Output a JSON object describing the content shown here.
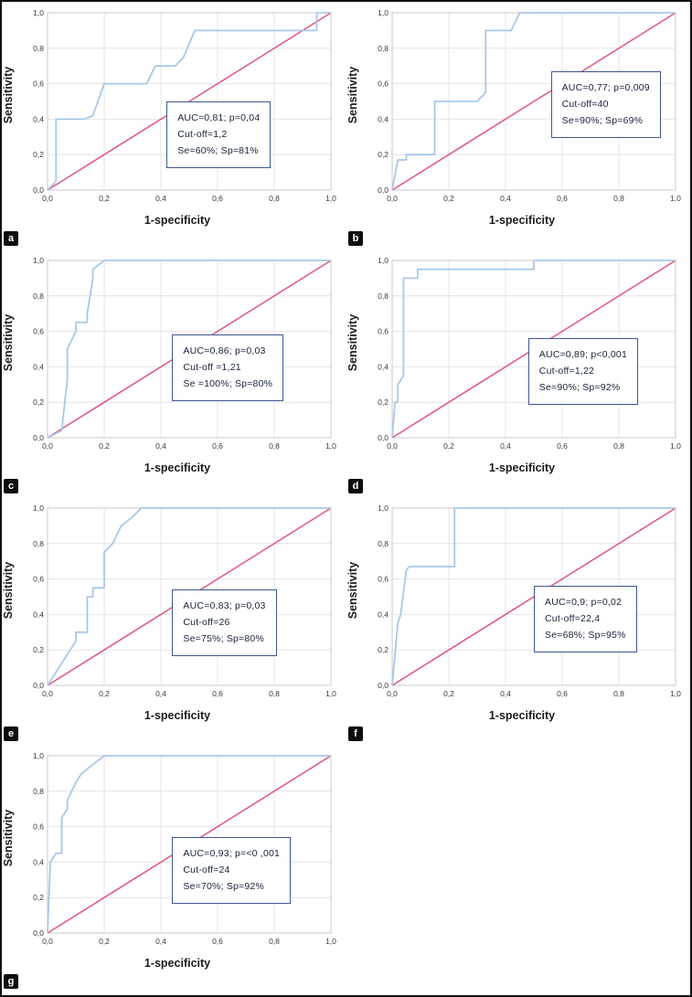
{
  "figure": {
    "ticks": [
      "0,0",
      "0,2",
      "0,4",
      "0,6",
      "0,8",
      "1,0"
    ],
    "xlabel": "1-specificity",
    "ylabel": "Sensitivity"
  },
  "colors": {
    "roc_curve": "#a9c7e8",
    "diagonal_reference": "#e0577a",
    "grid": "#e4e4e4",
    "annotation_border": "#3a5795",
    "letter_badge_bg": "#0d0d0d",
    "letter_badge_text": "#ffffff"
  },
  "chart_data": [
    {
      "type": "line",
      "panel": "a",
      "xlabel": "1-specificity",
      "ylabel": "Sensitivity",
      "xlim": [
        0,
        1
      ],
      "ylim": [
        0,
        1
      ],
      "grid": true,
      "annotation": {
        "auc_p": "AUC=0,81; p=0,04",
        "cutoff": "Cut-off=1,2",
        "se_sp": "Se=60%; Sp=81%"
      },
      "box_pos": [
        0.42,
        0.5
      ],
      "diagonal": [
        [
          0,
          0
        ],
        [
          1,
          1
        ]
      ],
      "roc_points": [
        [
          0,
          0
        ],
        [
          0.03,
          0.05
        ],
        [
          0.03,
          0.4
        ],
        [
          0.13,
          0.4
        ],
        [
          0.16,
          0.42
        ],
        [
          0.2,
          0.6
        ],
        [
          0.35,
          0.6
        ],
        [
          0.38,
          0.7
        ],
        [
          0.45,
          0.7
        ],
        [
          0.48,
          0.75
        ],
        [
          0.52,
          0.9
        ],
        [
          0.95,
          0.9
        ],
        [
          0.95,
          1.0
        ],
        [
          1,
          1
        ]
      ]
    },
    {
      "type": "line",
      "panel": "b",
      "xlabel": "1-specificity",
      "ylabel": "Sensitivity",
      "xlim": [
        0,
        1
      ],
      "ylim": [
        0,
        1
      ],
      "grid": true,
      "annotation": {
        "auc_p": "AUC=0,77; p=0,009",
        "cutoff": "Cut-off=40",
        "se_sp": "Se=90%; Sp=69%"
      },
      "box_pos": [
        0.56,
        0.33
      ],
      "diagonal": [
        [
          0,
          0
        ],
        [
          1,
          1
        ]
      ],
      "roc_points": [
        [
          0,
          0
        ],
        [
          0.02,
          0.17
        ],
        [
          0.05,
          0.17
        ],
        [
          0.05,
          0.2
        ],
        [
          0.15,
          0.2
        ],
        [
          0.15,
          0.5
        ],
        [
          0.3,
          0.5
        ],
        [
          0.33,
          0.55
        ],
        [
          0.33,
          0.9
        ],
        [
          0.42,
          0.9
        ],
        [
          0.45,
          1.0
        ],
        [
          1,
          1
        ]
      ]
    },
    {
      "type": "line",
      "panel": "c",
      "xlabel": "1-specificity",
      "ylabel": "Sensitivity",
      "xlim": [
        0,
        1
      ],
      "ylim": [
        0,
        1
      ],
      "grid": true,
      "annotation": {
        "auc_p": "AUC=0,86; p=0,03",
        "cutoff": "Cut-off =1,21",
        "se_sp": "Se =100%; Sp=80%"
      },
      "box_pos": [
        0.44,
        0.42
      ],
      "diagonal": [
        [
          0,
          0
        ],
        [
          1,
          1
        ]
      ],
      "roc_points": [
        [
          0,
          0
        ],
        [
          0.05,
          0.04
        ],
        [
          0.07,
          0.33
        ],
        [
          0.07,
          0.5
        ],
        [
          0.1,
          0.6
        ],
        [
          0.1,
          0.65
        ],
        [
          0.14,
          0.65
        ],
        [
          0.14,
          0.7
        ],
        [
          0.16,
          0.9
        ],
        [
          0.16,
          0.95
        ],
        [
          0.2,
          1.0
        ],
        [
          1,
          1
        ]
      ]
    },
    {
      "type": "line",
      "panel": "d",
      "xlabel": "1-specificity",
      "ylabel": "Sensitivity",
      "xlim": [
        0,
        1
      ],
      "ylim": [
        0,
        1
      ],
      "grid": true,
      "annotation": {
        "auc_p": "AUC=0,89; p<0,001",
        "cutoff": "Cut-off=1,22",
        "se_sp": "Se=90%; Sp=92%"
      },
      "box_pos": [
        0.48,
        0.44
      ],
      "diagonal": [
        [
          0,
          0
        ],
        [
          1,
          1
        ]
      ],
      "roc_points": [
        [
          0,
          0
        ],
        [
          0.01,
          0.2
        ],
        [
          0.02,
          0.2
        ],
        [
          0.02,
          0.3
        ],
        [
          0.04,
          0.35
        ],
        [
          0.04,
          0.9
        ],
        [
          0.09,
          0.9
        ],
        [
          0.09,
          0.95
        ],
        [
          0.5,
          0.95
        ],
        [
          0.5,
          1.0
        ],
        [
          1,
          1
        ]
      ]
    },
    {
      "type": "line",
      "panel": "e",
      "xlabel": "1-specificity",
      "ylabel": "Sensitivity",
      "xlim": [
        0,
        1
      ],
      "ylim": [
        0,
        1
      ],
      "grid": true,
      "annotation": {
        "auc_p": "AUC=0,83; p=0,03",
        "cutoff": "Cut-off=26",
        "se_sp": "Se=75%; Sp=80%"
      },
      "box_pos": [
        0.44,
        0.46
      ],
      "diagonal": [
        [
          0,
          0
        ],
        [
          1,
          1
        ]
      ],
      "roc_points": [
        [
          0,
          0
        ],
        [
          0.1,
          0.25
        ],
        [
          0.1,
          0.3
        ],
        [
          0.14,
          0.3
        ],
        [
          0.14,
          0.5
        ],
        [
          0.16,
          0.5
        ],
        [
          0.16,
          0.55
        ],
        [
          0.2,
          0.55
        ],
        [
          0.2,
          0.75
        ],
        [
          0.23,
          0.8
        ],
        [
          0.26,
          0.9
        ],
        [
          0.3,
          0.95
        ],
        [
          0.33,
          1.0
        ],
        [
          1,
          1
        ]
      ]
    },
    {
      "type": "line",
      "panel": "f",
      "xlabel": "1-specificity",
      "ylabel": "Sensitivity",
      "xlim": [
        0,
        1
      ],
      "ylim": [
        0,
        1
      ],
      "grid": true,
      "annotation": {
        "auc_p": "AUC=0,9; p=0,02",
        "cutoff": "Cut-off=22,4",
        "se_sp": "Se=68%; Sp=95%"
      },
      "box_pos": [
        0.5,
        0.44
      ],
      "diagonal": [
        [
          0,
          0
        ],
        [
          1,
          1
        ]
      ],
      "roc_points": [
        [
          0,
          0
        ],
        [
          0.02,
          0.35
        ],
        [
          0.03,
          0.4
        ],
        [
          0.05,
          0.65
        ],
        [
          0.06,
          0.67
        ],
        [
          0.22,
          0.67
        ],
        [
          0.22,
          1.0
        ],
        [
          1,
          1
        ]
      ]
    },
    {
      "type": "line",
      "panel": "g",
      "xlabel": "1-specificity",
      "ylabel": "Sensitivity",
      "xlim": [
        0,
        1
      ],
      "ylim": [
        0,
        1
      ],
      "grid": true,
      "annotation": {
        "auc_p": "AUC=0,93; p=<0 ,001",
        "cutoff": "Cut-off=24",
        "se_sp": "Se=70%; Sp=92%"
      },
      "box_pos": [
        0.44,
        0.46
      ],
      "diagonal": [
        [
          0,
          0
        ],
        [
          1,
          1
        ]
      ],
      "roc_points": [
        [
          0,
          0
        ],
        [
          0.01,
          0.4
        ],
        [
          0.03,
          0.45
        ],
        [
          0.05,
          0.45
        ],
        [
          0.05,
          0.65
        ],
        [
          0.07,
          0.7
        ],
        [
          0.07,
          0.75
        ],
        [
          0.1,
          0.85
        ],
        [
          0.12,
          0.9
        ],
        [
          0.16,
          0.95
        ],
        [
          0.2,
          1.0
        ],
        [
          1,
          1
        ]
      ]
    }
  ]
}
